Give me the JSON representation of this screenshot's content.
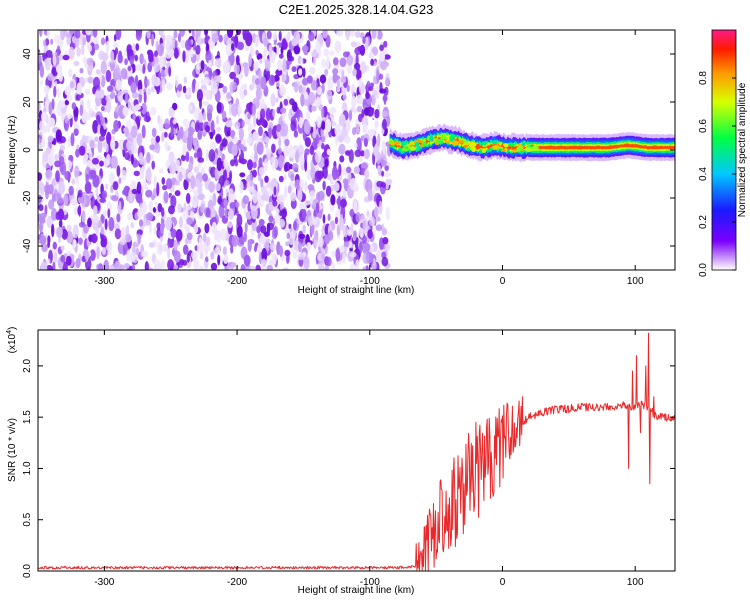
{
  "figure": {
    "title": "C2E1.2025.328.14.04.G23",
    "colors": {
      "axis": "#000000",
      "snr_line": "#e8282a",
      "noise_dots": "#7a1ee6",
      "background": "#ffffff"
    }
  },
  "chart_data": [
    {
      "type": "heatmap",
      "name": "spectrogram",
      "xlabel": "Height of straight line (km)",
      "ylabel": "Frequency (Hz)",
      "xlim": [
        -350,
        130
      ],
      "ylim": [
        -50,
        50
      ],
      "xticks": [
        -300,
        -200,
        -100,
        0,
        100
      ],
      "yticks": [
        -40,
        -20,
        0,
        20,
        40
      ],
      "noise_region_x": [
        -350,
        -85
      ],
      "signal_region_x": [
        -85,
        130
      ],
      "signal_frequency_hz": 1,
      "signal_trace": [
        {
          "x": -85,
          "y": 3
        },
        {
          "x": -75,
          "y": 1
        },
        {
          "x": -65,
          "y": 2
        },
        {
          "x": -55,
          "y": 4
        },
        {
          "x": -45,
          "y": 5
        },
        {
          "x": -35,
          "y": 4
        },
        {
          "x": -25,
          "y": 2
        },
        {
          "x": -15,
          "y": 1
        },
        {
          "x": -5,
          "y": 2
        },
        {
          "x": 5,
          "y": 1
        },
        {
          "x": 20,
          "y": 1
        },
        {
          "x": 40,
          "y": 1
        },
        {
          "x": 60,
          "y": 1
        },
        {
          "x": 80,
          "y": 1
        },
        {
          "x": 95,
          "y": 2
        },
        {
          "x": 110,
          "y": 1
        },
        {
          "x": 130,
          "y": 1
        }
      ],
      "colorbar": {
        "label": "Normalized spectral amplitude",
        "range": [
          0,
          1
        ],
        "ticks": [
          {
            "value": 0.0,
            "label": "0.0"
          },
          {
            "value": 0.2,
            "label": "0.2"
          },
          {
            "value": 0.4,
            "label": "0.4"
          },
          {
            "value": 0.6,
            "label": "0.6"
          },
          {
            "value": 0.8,
            "label": "0.8"
          }
        ],
        "stops": [
          {
            "v": 0.0,
            "color": "#ffffff"
          },
          {
            "v": 0.12,
            "color": "#7b00ff"
          },
          {
            "v": 0.25,
            "color": "#1a1aff"
          },
          {
            "v": 0.4,
            "color": "#00c8ff"
          },
          {
            "v": 0.55,
            "color": "#00ff44"
          },
          {
            "v": 0.7,
            "color": "#d8ff00"
          },
          {
            "v": 0.82,
            "color": "#ff9900"
          },
          {
            "v": 0.92,
            "color": "#ff1a00"
          },
          {
            "v": 1.0,
            "color": "#ff1a88"
          }
        ]
      }
    },
    {
      "type": "line",
      "name": "snr",
      "xlabel": "Height of straight line (km)",
      "ylabel": "SNR (10 * v/v)",
      "y_multiplier": "(x10",
      "y_multiplier_exp": "4",
      "y_multiplier_close": ")",
      "xlim": [
        -350,
        130
      ],
      "ylim": [
        0,
        2.35
      ],
      "xticks": [
        -300,
        -200,
        -100,
        0,
        100
      ],
      "yticks": [
        {
          "value": 0.0,
          "label": "0.0"
        },
        {
          "value": 0.5,
          "label": "0.5"
        },
        {
          "value": 1.0,
          "label": "1.0"
        },
        {
          "value": 1.5,
          "label": "1.5"
        },
        {
          "value": 2.0,
          "label": "2.0"
        }
      ],
      "series": [
        {
          "name": "SNR",
          "x": [
            -350,
            -300,
            -250,
            -200,
            -150,
            -100,
            -80,
            -65,
            -60,
            -55,
            -50,
            -45,
            -40,
            -35,
            -30,
            -25,
            -20,
            -15,
            -10,
            -5,
            0,
            5,
            10,
            15,
            20,
            25,
            30,
            35,
            40,
            50,
            60,
            70,
            80,
            90,
            95,
            100,
            105,
            110,
            115,
            120,
            130
          ],
          "y": [
            0.02,
            0.02,
            0.02,
            0.02,
            0.02,
            0.02,
            0.02,
            0.03,
            0.1,
            0.3,
            0.45,
            0.55,
            0.6,
            0.7,
            0.78,
            0.8,
            0.95,
            1.0,
            1.1,
            1.15,
            1.25,
            1.32,
            1.4,
            1.45,
            1.5,
            1.52,
            1.55,
            1.56,
            1.58,
            1.58,
            1.6,
            1.6,
            1.6,
            1.62,
            1.6,
            1.6,
            1.62,
            1.6,
            1.52,
            1.5,
            1.48
          ]
        }
      ],
      "noise_amplitude_x": [
        -65,
        15
      ],
      "spikes": [
        {
          "x": 95,
          "y": 1.0
        },
        {
          "x": 98,
          "y": 1.95
        },
        {
          "x": 101,
          "y": 2.1
        },
        {
          "x": 104,
          "y": 1.35
        },
        {
          "x": 108,
          "y": 2.0
        },
        {
          "x": 110,
          "y": 2.32
        },
        {
          "x": 111,
          "y": 0.85
        },
        {
          "x": 114,
          "y": 1.7
        }
      ]
    }
  ]
}
